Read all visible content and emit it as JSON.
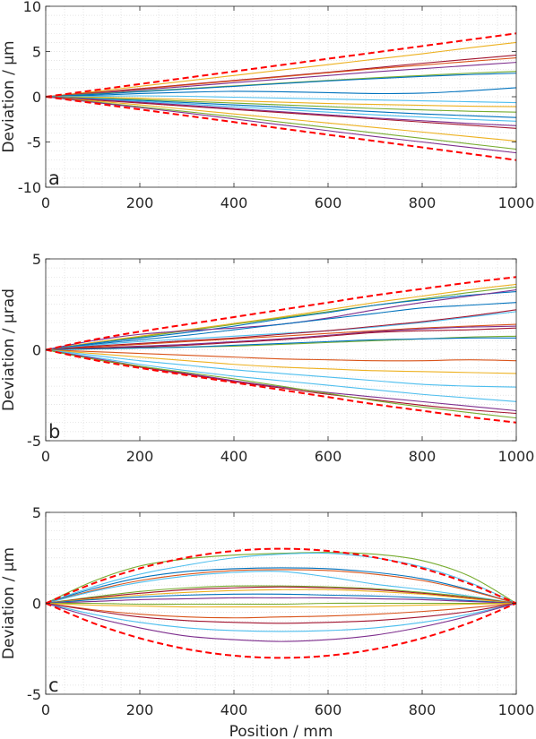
{
  "chart_data": [
    {
      "type": "line",
      "panel_label": "a",
      "xlabel": "",
      "ylabel": "Deviation / µm",
      "xlim": [
        0,
        1000
      ],
      "ylim": [
        -10,
        10
      ],
      "xticks": [
        0,
        200,
        400,
        600,
        800,
        1000
      ],
      "yticks": [
        -10,
        -5,
        0,
        5,
        10
      ],
      "grid": "minor",
      "x": [
        0,
        100,
        200,
        300,
        400,
        500,
        600,
        700,
        800,
        900,
        1000
      ],
      "envelope": {
        "style": "dashed",
        "color": "#ff0000",
        "upper": [
          0,
          0.7,
          1.4,
          2.1,
          2.8,
          3.5,
          4.2,
          4.9,
          5.6,
          6.3,
          7.0
        ],
        "lower": [
          0,
          -0.7,
          -1.4,
          -2.1,
          -2.8,
          -3.5,
          -4.2,
          -4.9,
          -5.6,
          -6.3,
          -7.0
        ]
      },
      "series": [
        {
          "color": "#edb120",
          "values": [
            0,
            0.55,
            1.15,
            1.75,
            2.35,
            2.95,
            3.55,
            4.15,
            4.75,
            5.4,
            6.0
          ]
        },
        {
          "color": "#a2142f",
          "values": [
            0,
            0.45,
            0.9,
            1.35,
            1.8,
            2.25,
            2.7,
            3.2,
            3.7,
            4.15,
            4.6
          ]
        },
        {
          "color": "#d95319",
          "values": [
            0,
            0.4,
            0.85,
            1.3,
            1.75,
            2.2,
            2.65,
            3.1,
            3.5,
            3.9,
            4.3
          ]
        },
        {
          "color": "#7e2f8e",
          "values": [
            0,
            0.35,
            0.75,
            1.15,
            1.55,
            1.95,
            2.35,
            2.75,
            3.1,
            3.45,
            3.8
          ]
        },
        {
          "color": "#77ac30",
          "values": [
            0,
            0.3,
            0.6,
            0.9,
            1.2,
            1.5,
            1.8,
            2.1,
            2.35,
            2.6,
            2.8
          ]
        },
        {
          "color": "#0072bd",
          "values": [
            0,
            0.25,
            0.55,
            0.85,
            1.15,
            1.45,
            1.75,
            2.0,
            2.25,
            2.45,
            2.6
          ]
        },
        {
          "color": "#0072bd",
          "values": [
            0,
            0.15,
            0.35,
            0.5,
            0.6,
            0.55,
            0.45,
            0.35,
            0.4,
            0.65,
            1.0
          ]
        },
        {
          "color": "#4dbeee",
          "values": [
            0,
            0.05,
            0.1,
            0.05,
            -0.05,
            -0.15,
            -0.25,
            -0.35,
            -0.45,
            -0.55,
            -0.65
          ]
        },
        {
          "color": "#edb120",
          "values": [
            0,
            -0.05,
            -0.15,
            -0.3,
            -0.45,
            -0.6,
            -0.75,
            -0.85,
            -0.95,
            -1.05,
            -1.1
          ]
        },
        {
          "color": "#77ac30",
          "values": [
            0,
            -0.15,
            -0.3,
            -0.5,
            -0.7,
            -0.9,
            -1.1,
            -1.3,
            -1.45,
            -1.6,
            -1.7
          ]
        },
        {
          "color": "#0072bd",
          "values": [
            0,
            -0.2,
            -0.4,
            -0.65,
            -0.9,
            -1.15,
            -1.4,
            -1.65,
            -1.9,
            -2.1,
            -2.3
          ]
        },
        {
          "color": "#4dbeee",
          "values": [
            0,
            -0.25,
            -0.5,
            -0.8,
            -1.1,
            -1.4,
            -1.7,
            -2.0,
            -2.25,
            -2.5,
            -2.7
          ]
        },
        {
          "color": "#7e2f8e",
          "values": [
            0,
            -0.3,
            -0.6,
            -0.95,
            -1.3,
            -1.65,
            -2.0,
            -2.35,
            -2.65,
            -2.95,
            -3.2
          ]
        },
        {
          "color": "#a2142f",
          "values": [
            0,
            -0.35,
            -0.7,
            -1.05,
            -1.4,
            -1.75,
            -2.1,
            -2.45,
            -2.8,
            -3.15,
            -3.5
          ]
        },
        {
          "color": "#edb120",
          "values": [
            0,
            -0.45,
            -0.9,
            -1.4,
            -1.9,
            -2.4,
            -2.9,
            -3.4,
            -3.9,
            -4.4,
            -4.9
          ]
        },
        {
          "color": "#77ac30",
          "values": [
            0,
            -0.55,
            -1.1,
            -1.65,
            -2.2,
            -2.8,
            -3.4,
            -4.0,
            -4.6,
            -5.2,
            -5.8
          ]
        },
        {
          "color": "#7e2f8e",
          "values": [
            0,
            -0.6,
            -1.2,
            -1.8,
            -2.45,
            -3.1,
            -3.75,
            -4.4,
            -5.0,
            -5.6,
            -6.2
          ]
        }
      ]
    },
    {
      "type": "line",
      "panel_label": "b",
      "xlabel": "",
      "ylabel": "Deviation / µrad",
      "xlim": [
        0,
        1000
      ],
      "ylim": [
        -5,
        5
      ],
      "xticks": [
        0,
        200,
        400,
        600,
        800,
        1000
      ],
      "yticks": [
        -5,
        0,
        5
      ],
      "grid": "minor",
      "x": [
        0,
        100,
        200,
        300,
        400,
        500,
        600,
        700,
        800,
        900,
        1000
      ],
      "envelope": {
        "style": "dashed",
        "color": "#ff0000",
        "upper": [
          0,
          0.55,
          1.0,
          1.4,
          1.8,
          2.2,
          2.6,
          3.0,
          3.35,
          3.7,
          4.0
        ],
        "lower": [
          0,
          -0.55,
          -1.0,
          -1.4,
          -1.8,
          -2.2,
          -2.6,
          -3.0,
          -3.35,
          -3.7,
          -4.0
        ]
      },
      "series": [
        {
          "color": "#edb120",
          "values": [
            0,
            0.4,
            0.75,
            1.1,
            1.45,
            1.8,
            2.2,
            2.6,
            2.95,
            3.3,
            3.6
          ]
        },
        {
          "color": "#77ac30",
          "values": [
            0,
            0.35,
            0.7,
            1.05,
            1.4,
            1.75,
            2.1,
            2.45,
            2.8,
            3.15,
            3.45
          ]
        },
        {
          "color": "#0072bd",
          "values": [
            0,
            0.35,
            0.65,
            0.95,
            1.3,
            1.7,
            2.05,
            2.45,
            2.75,
            3.0,
            3.2
          ]
        },
        {
          "color": "#7e2f8e",
          "values": [
            0,
            0.5,
            0.85,
            1.05,
            1.2,
            1.4,
            1.75,
            2.2,
            2.6,
            2.95,
            3.3
          ]
        },
        {
          "color": "#0072bd",
          "values": [
            0,
            0.3,
            0.55,
            0.8,
            1.1,
            1.4,
            1.7,
            2.0,
            2.3,
            2.45,
            2.6
          ]
        },
        {
          "color": "#4dbeee",
          "values": [
            0,
            0.25,
            0.45,
            0.6,
            0.75,
            0.9,
            1.05,
            1.25,
            1.5,
            1.8,
            2.1
          ]
        },
        {
          "color": "#a2142f",
          "values": [
            0,
            0.2,
            0.35,
            0.5,
            0.65,
            0.85,
            1.05,
            1.3,
            1.55,
            1.85,
            2.2
          ]
        },
        {
          "color": "#d95319",
          "values": [
            0,
            0.15,
            0.3,
            0.45,
            0.6,
            0.75,
            0.9,
            1.05,
            1.2,
            1.3,
            1.4
          ]
        },
        {
          "color": "#7e2f8e",
          "values": [
            0,
            0.1,
            0.2,
            0.3,
            0.45,
            0.6,
            0.8,
            1.0,
            1.15,
            1.25,
            1.3
          ]
        },
        {
          "color": "#a2142f",
          "values": [
            0,
            0.1,
            0.15,
            0.25,
            0.4,
            0.55,
            0.75,
            0.95,
            1.05,
            1.1,
            1.2
          ]
        },
        {
          "color": "#77ac30",
          "values": [
            0,
            0.05,
            0.1,
            0.15,
            0.2,
            0.3,
            0.4,
            0.5,
            0.6,
            0.7,
            0.75
          ]
        },
        {
          "color": "#0072bd",
          "values": [
            0,
            0.05,
            0.1,
            0.15,
            0.25,
            0.35,
            0.45,
            0.55,
            0.6,
            0.65,
            0.65
          ]
        },
        {
          "color": "#d95319",
          "values": [
            0,
            -0.1,
            -0.2,
            -0.3,
            -0.4,
            -0.5,
            -0.55,
            -0.6,
            -0.6,
            -0.55,
            -0.6
          ]
        },
        {
          "color": "#edb120",
          "values": [
            0,
            -0.2,
            -0.4,
            -0.6,
            -0.8,
            -0.95,
            -1.05,
            -1.15,
            -1.2,
            -1.25,
            -1.3
          ]
        },
        {
          "color": "#4dbeee",
          "values": [
            0,
            -0.3,
            -0.6,
            -0.85,
            -1.1,
            -1.3,
            -1.5,
            -1.7,
            -1.9,
            -2.0,
            -2.05
          ]
        },
        {
          "color": "#4dbeee",
          "values": [
            0,
            -0.4,
            -0.8,
            -1.15,
            -1.45,
            -1.7,
            -1.95,
            -2.2,
            -2.45,
            -2.65,
            -2.85
          ]
        },
        {
          "color": "#7e2f8e",
          "values": [
            0,
            -0.45,
            -0.9,
            -1.3,
            -1.7,
            -2.05,
            -2.35,
            -2.6,
            -2.85,
            -3.1,
            -3.35
          ]
        },
        {
          "color": "#a2142f",
          "values": [
            0,
            -0.5,
            -0.95,
            -1.35,
            -1.75,
            -2.1,
            -2.45,
            -2.75,
            -3.05,
            -3.3,
            -3.5
          ]
        },
        {
          "color": "#77ac30",
          "values": [
            0,
            -0.5,
            -0.9,
            -1.25,
            -1.6,
            -2.0,
            -2.4,
            -2.8,
            -3.15,
            -3.45,
            -3.75
          ]
        }
      ]
    },
    {
      "type": "line",
      "panel_label": "c",
      "xlabel": "Position / mm",
      "ylabel": "Deviation / µm",
      "xlim": [
        0,
        1000
      ],
      "ylim": [
        -5,
        5
      ],
      "xticks": [
        0,
        200,
        400,
        600,
        800,
        1000
      ],
      "yticks": [
        -5,
        0,
        5
      ],
      "grid": "minor",
      "x": [
        0,
        100,
        200,
        300,
        400,
        500,
        600,
        700,
        800,
        900,
        1000
      ],
      "envelope": {
        "style": "dashed",
        "color": "#ff0000",
        "upper": [
          0,
          1.08,
          1.92,
          2.52,
          2.88,
          3.0,
          2.88,
          2.52,
          1.92,
          1.08,
          0
        ],
        "lower": [
          0,
          -1.08,
          -1.92,
          -2.52,
          -2.88,
          -3.0,
          -2.88,
          -2.52,
          -1.92,
          -1.08,
          0
        ]
      },
      "series": [
        {
          "color": "#77ac30",
          "values": [
            0,
            1.2,
            2.05,
            2.45,
            2.65,
            2.75,
            2.8,
            2.7,
            2.35,
            1.5,
            0
          ]
        },
        {
          "color": "#4dbeee",
          "values": [
            0,
            0.9,
            1.6,
            2.1,
            2.5,
            2.7,
            2.75,
            2.5,
            2.0,
            1.15,
            0
          ]
        },
        {
          "color": "#0072bd",
          "values": [
            0,
            0.8,
            1.4,
            1.75,
            1.9,
            1.95,
            1.9,
            1.7,
            1.35,
            0.75,
            0
          ]
        },
        {
          "color": "#d95319",
          "values": [
            0,
            0.7,
            1.25,
            1.6,
            1.8,
            1.85,
            1.8,
            1.6,
            1.25,
            0.7,
            0
          ]
        },
        {
          "color": "#4dbeee",
          "values": [
            0,
            0.65,
            1.15,
            1.5,
            1.7,
            1.75,
            1.45,
            1.05,
            0.75,
            0.4,
            0
          ]
        },
        {
          "color": "#77ac30",
          "values": [
            0,
            0.35,
            0.65,
            0.85,
            0.95,
            0.95,
            0.9,
            0.8,
            0.6,
            0.35,
            0
          ]
        },
        {
          "color": "#a2142f",
          "values": [
            0,
            0.3,
            0.55,
            0.75,
            0.85,
            0.9,
            0.85,
            0.75,
            0.55,
            0.3,
            0
          ]
        },
        {
          "color": "#edb120",
          "values": [
            0,
            0.25,
            0.45,
            0.6,
            0.7,
            0.75,
            0.75,
            0.65,
            0.5,
            0.25,
            0
          ]
        },
        {
          "color": "#0072bd",
          "values": [
            0,
            0.2,
            0.35,
            0.45,
            0.5,
            0.5,
            0.45,
            0.4,
            0.3,
            0.15,
            0
          ]
        },
        {
          "color": "#7e2f8e",
          "values": [
            0,
            0.1,
            0.2,
            0.25,
            0.3,
            0.3,
            0.3,
            0.25,
            0.2,
            0.1,
            0
          ]
        },
        {
          "color": "#77ac30",
          "values": [
            0,
            0.0,
            -0.05,
            -0.05,
            -0.05,
            -0.05,
            0.0,
            0.0,
            0.0,
            0.0,
            0
          ]
        },
        {
          "color": "#edb120",
          "values": [
            0,
            -0.1,
            -0.15,
            -0.2,
            -0.2,
            -0.2,
            -0.2,
            -0.15,
            -0.1,
            -0.05,
            0
          ]
        },
        {
          "color": "#d95319",
          "values": [
            0,
            -0.35,
            -0.6,
            -0.75,
            -0.8,
            -0.75,
            -0.7,
            -0.6,
            -0.45,
            -0.25,
            0
          ]
        },
        {
          "color": "#a2142f",
          "values": [
            0,
            -0.4,
            -0.75,
            -0.95,
            -1.05,
            -1.1,
            -1.05,
            -0.95,
            -0.75,
            -0.45,
            0
          ]
        },
        {
          "color": "#4dbeee",
          "values": [
            0,
            -0.6,
            -1.05,
            -1.35,
            -1.5,
            -1.55,
            -1.5,
            -1.35,
            -1.05,
            -0.6,
            0
          ]
        },
        {
          "color": "#7e2f8e",
          "values": [
            0,
            -0.75,
            -1.35,
            -1.8,
            -2.0,
            -2.1,
            -2.0,
            -1.75,
            -1.3,
            -0.7,
            0
          ]
        }
      ]
    }
  ]
}
